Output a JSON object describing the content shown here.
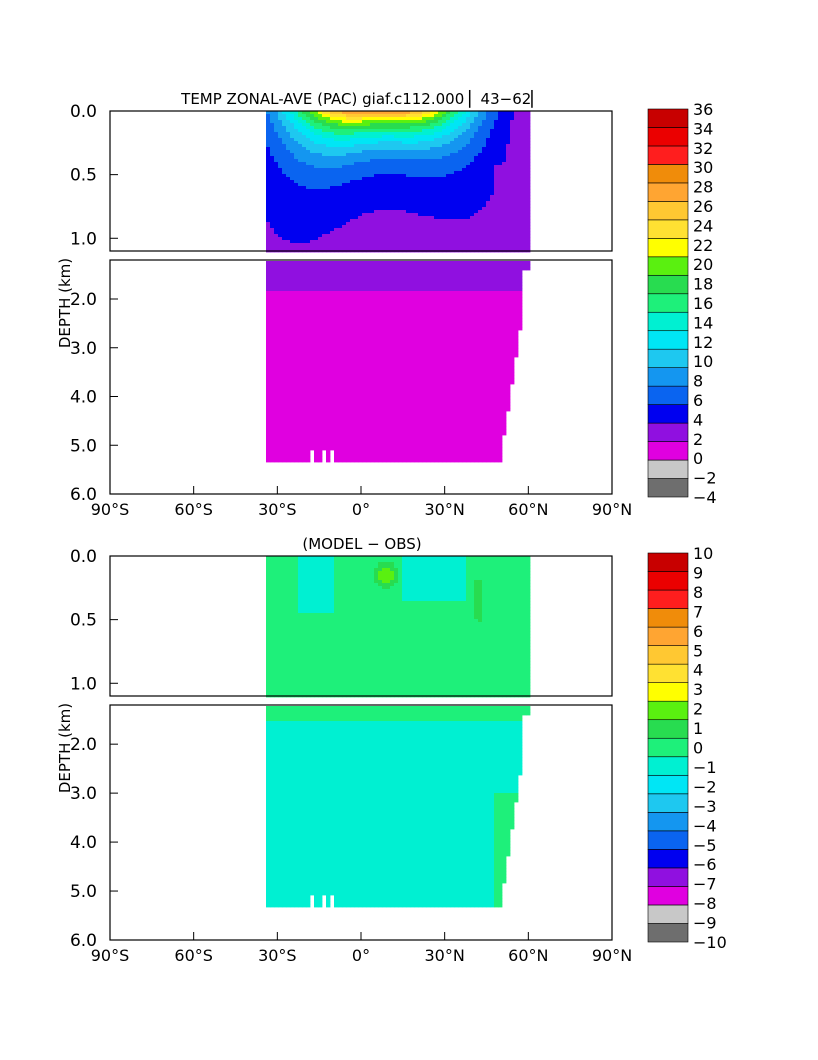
{
  "chart_data": [
    {
      "type": "heatmap",
      "title": "TEMP ZONAL-AVE (PAC) giaf.c112.000 ▏43−62▏",
      "ylabel": "DEPTH (km)",
      "xlabel": "",
      "x_ticks": [
        "90°S",
        "60°S",
        "30°S",
        "0°",
        "30°N",
        "60°N",
        "90°N"
      ],
      "x_tick_values": [
        -90,
        -60,
        -30,
        0,
        30,
        60,
        90
      ],
      "xlim": [
        -90,
        90
      ],
      "y_ticks_upper": [
        "0.0",
        "0.5",
        "1.0"
      ],
      "y_tick_values_upper": [
        0.0,
        0.5,
        1.0
      ],
      "ylim_upper": [
        0.0,
        1.1
      ],
      "y_ticks_lower": [
        "2.0",
        "3.0",
        "4.0",
        "5.0",
        "6.0"
      ],
      "y_tick_values_lower": [
        2.0,
        3.0,
        4.0,
        5.0,
        6.0
      ],
      "ylim_lower": [
        1.2,
        6.0
      ],
      "data_extent": {
        "lat_min": -34,
        "lat_max": 61,
        "depth_max": 5.35
      },
      "colorbar": {
        "levels": [
          -4,
          -2,
          0,
          2,
          4,
          6,
          8,
          10,
          12,
          14,
          16,
          18,
          20,
          22,
          24,
          26,
          28,
          30,
          32,
          34,
          36
        ],
        "labels": [
          "36",
          "34",
          "32",
          "30",
          "28",
          "26",
          "24",
          "22",
          "20",
          "18",
          "16",
          "14",
          "12",
          "10",
          "8",
          "6",
          "4",
          "2",
          "0",
          "−2",
          "−4"
        ],
        "colors": [
          "#6e6e6e",
          "#c8c8c8",
          "#e000e0",
          "#9010e0",
          "#0000f0",
          "#0a64f0",
          "#1496f0",
          "#1ec8f0",
          "#00e6f5",
          "#00f0d2",
          "#1ef07a",
          "#28dc50",
          "#5af010",
          "#ffff00",
          "#ffe132",
          "#ffc832",
          "#ffa532",
          "#f08c0a",
          "#ff1e1e",
          "#eb0000",
          "#c80000"
        ]
      },
      "field": {
        "description_values": "approximate zonal-mean temperature (deg C) by latitude and depth",
        "surface_max": 29,
        "bottom_value": 1.2
      }
    },
    {
      "type": "heatmap",
      "title": "(MODEL − OBS)",
      "ylabel": "DEPTH (km)",
      "xlabel": "",
      "x_ticks": [
        "90°S",
        "60°S",
        "30°S",
        "0°",
        "30°N",
        "60°N",
        "90°N"
      ],
      "x_tick_values": [
        -90,
        -60,
        -30,
        0,
        30,
        60,
        90
      ],
      "xlim": [
        -90,
        90
      ],
      "y_ticks_upper": [
        "0.0",
        "0.5",
        "1.0"
      ],
      "y_tick_values_upper": [
        0.0,
        0.5,
        1.0
      ],
      "ylim_upper": [
        0.0,
        1.1
      ],
      "y_ticks_lower": [
        "2.0",
        "3.0",
        "4.0",
        "5.0",
        "6.0"
      ],
      "y_tick_values_lower": [
        2.0,
        3.0,
        4.0,
        5.0,
        6.0
      ],
      "ylim_lower": [
        1.2,
        6.0
      ],
      "data_extent": {
        "lat_min": -34,
        "lat_max": 61,
        "depth_max": 5.35
      },
      "colorbar": {
        "levels": [
          -10,
          -9,
          -8,
          -7,
          -6,
          -5,
          -4,
          -3,
          -2,
          -1,
          0,
          1,
          2,
          3,
          4,
          5,
          6,
          7,
          8,
          9,
          10
        ],
        "labels": [
          "10",
          "9",
          "8",
          "7",
          "6",
          "5",
          "4",
          "3",
          "2",
          "1",
          "0",
          "−1",
          "−2",
          "−3",
          "−4",
          "−5",
          "−6",
          "−7",
          "−8",
          "−9",
          "−10"
        ],
        "colors": [
          "#6e6e6e",
          "#c8c8c8",
          "#e000e0",
          "#9010e0",
          "#0000f0",
          "#0a64f0",
          "#1496f0",
          "#1ec8f0",
          "#00e6f5",
          "#00f0d2",
          "#1ef07a",
          "#28dc50",
          "#5af010",
          "#ffff00",
          "#ffe132",
          "#ffc832",
          "#ffa532",
          "#f08c0a",
          "#ff1e1e",
          "#eb0000",
          "#c80000"
        ]
      },
      "field": {
        "description_values": "approximate model minus observed temperature difference (deg C)",
        "warm_anomaly_peak": 2.5
      }
    }
  ]
}
